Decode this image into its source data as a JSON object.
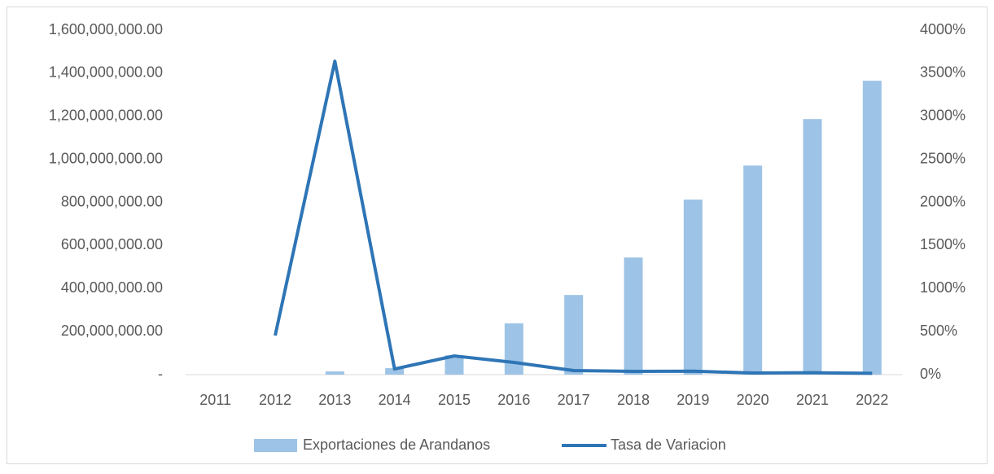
{
  "chart_data": {
    "type": "bar_line",
    "categories": [
      "2011",
      "2012",
      "2013",
      "2014",
      "2015",
      "2016",
      "2017",
      "2018",
      "2019",
      "2020",
      "2021",
      "2022"
    ],
    "series": [
      {
        "name": "Exportaciones de Arandanos",
        "type": "bar",
        "color": "#9dc3e6",
        "values": [
          0,
          0,
          15000000,
          30000000,
          90000000,
          238000000,
          370000000,
          544000000,
          813000000,
          971000000,
          1187000000,
          1365000000
        ]
      },
      {
        "name": "Tasa de Variacion",
        "type": "line",
        "axis": "y2",
        "color": "#2e75b6",
        "values": [
          null,
          454,
          3639,
          66,
          217,
          142,
          47,
          38,
          40,
          19,
          22,
          15
        ]
      }
    ],
    "ylim": [
      0,
      1600000000
    ],
    "yticks": [
      {
        "value": 0,
        "label": "-"
      },
      {
        "value": 200000000,
        "label": "200,000,000.00"
      },
      {
        "value": 400000000,
        "label": "400,000,000.00"
      },
      {
        "value": 600000000,
        "label": "600,000,000.00"
      },
      {
        "value": 800000000,
        "label": "800,000,000.00"
      },
      {
        "value": 1000000000,
        "label": "1,000,000,000.00"
      },
      {
        "value": 1200000000,
        "label": "1,200,000,000.00"
      },
      {
        "value": 1400000000,
        "label": "1,400,000,000.00"
      },
      {
        "value": 1600000000,
        "label": "1,600,000,000.00"
      }
    ],
    "y2lim": [
      0,
      4000
    ],
    "y2ticks": [
      {
        "value": 0,
        "label": "0%"
      },
      {
        "value": 500,
        "label": "500%"
      },
      {
        "value": 1000,
        "label": "1000%"
      },
      {
        "value": 1500,
        "label": "1500%"
      },
      {
        "value": 2000,
        "label": "2000%"
      },
      {
        "value": 2500,
        "label": "2500%"
      },
      {
        "value": 3000,
        "label": "3000%"
      },
      {
        "value": 3500,
        "label": "3500%"
      },
      {
        "value": 4000,
        "label": "4000%"
      }
    ],
    "legend": "bottom"
  }
}
